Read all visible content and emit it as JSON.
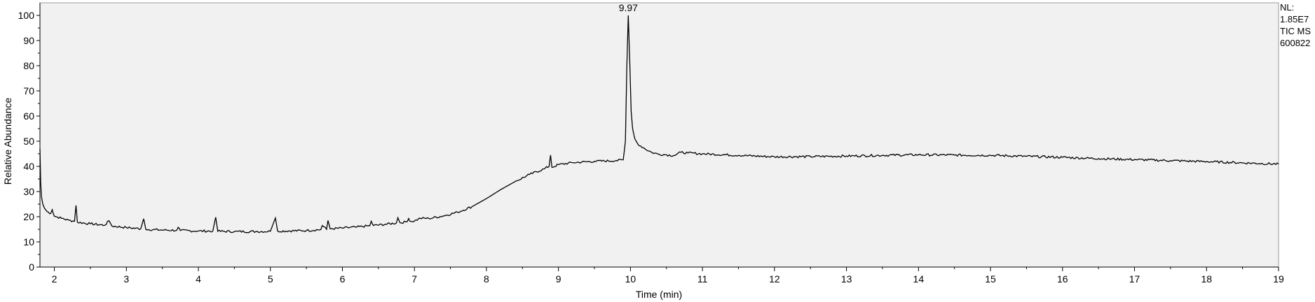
{
  "chart_data": {
    "type": "line",
    "xlabel": "Time (min)",
    "ylabel": "Relative Abundance",
    "xlim": [
      1.8,
      19.0
    ],
    "ylim": [
      0,
      100
    ],
    "x_ticks": [
      2,
      3,
      4,
      5,
      6,
      7,
      8,
      9,
      10,
      11,
      12,
      13,
      14,
      15,
      16,
      17,
      18,
      19
    ],
    "y_ticks": [
      0,
      10,
      20,
      30,
      40,
      50,
      60,
      70,
      80,
      90,
      100
    ],
    "peak_labels": [
      {
        "x": 9.97,
        "y": 100,
        "text": "9.97"
      }
    ],
    "info": [
      "NL:",
      "1.85E7",
      "TIC  MS",
      "600822"
    ],
    "series": [
      {
        "color": "#000000",
        "points": [
          [
            1.8,
            47
          ],
          [
            1.81,
            34
          ],
          [
            1.82,
            28
          ],
          [
            1.84,
            25
          ],
          [
            1.86,
            23.5
          ],
          [
            1.9,
            22
          ],
          [
            1.95,
            21.3
          ],
          [
            1.97,
            22.8
          ],
          [
            2.0,
            20.2
          ],
          [
            2.1,
            19.4
          ],
          [
            2.2,
            18.6
          ],
          [
            2.28,
            18.2
          ],
          [
            2.3,
            24.5
          ],
          [
            2.32,
            17.8
          ],
          [
            2.5,
            17.2
          ],
          [
            2.7,
            16.6
          ],
          [
            2.76,
            18.4
          ],
          [
            2.8,
            16.3
          ],
          [
            3.0,
            15.7
          ],
          [
            3.2,
            15.2
          ],
          [
            3.24,
            19.2
          ],
          [
            3.27,
            15.0
          ],
          [
            3.5,
            14.7
          ],
          [
            3.7,
            14.6
          ],
          [
            3.72,
            15.8
          ],
          [
            3.75,
            14.5
          ],
          [
            4.0,
            14.3
          ],
          [
            4.2,
            14.3
          ],
          [
            4.24,
            19.8
          ],
          [
            4.27,
            14.2
          ],
          [
            4.5,
            14.1
          ],
          [
            4.8,
            14.1
          ],
          [
            5.0,
            14.2
          ],
          [
            5.07,
            19.5
          ],
          [
            5.1,
            14.3
          ],
          [
            5.5,
            14.5
          ],
          [
            5.7,
            14.9
          ],
          [
            5.72,
            16.5
          ],
          [
            5.78,
            15.0
          ],
          [
            5.8,
            18.5
          ],
          [
            5.83,
            15.2
          ],
          [
            6.0,
            15.5
          ],
          [
            6.2,
            15.9
          ],
          [
            6.38,
            16.4
          ],
          [
            6.4,
            18.2
          ],
          [
            6.43,
            16.5
          ],
          [
            6.6,
            17.0
          ],
          [
            6.75,
            17.5
          ],
          [
            6.77,
            19.6
          ],
          [
            6.8,
            17.6
          ],
          [
            6.9,
            18.0
          ],
          [
            6.92,
            19.3
          ],
          [
            6.95,
            18.1
          ],
          [
            7.0,
            18.3
          ],
          [
            7.08,
            19.4
          ],
          [
            7.2,
            19.3
          ],
          [
            7.4,
            20.3
          ],
          [
            7.6,
            21.8
          ],
          [
            7.8,
            24.0
          ],
          [
            8.0,
            27.2
          ],
          [
            8.2,
            30.8
          ],
          [
            8.4,
            34.0
          ],
          [
            8.6,
            36.8
          ],
          [
            8.8,
            39.0
          ],
          [
            8.87,
            40.0
          ],
          [
            8.89,
            44.5
          ],
          [
            8.91,
            39.6
          ],
          [
            9.0,
            40.7
          ],
          [
            9.2,
            41.5
          ],
          [
            9.5,
            42.0
          ],
          [
            9.8,
            42.3
          ],
          [
            9.9,
            42.6
          ],
          [
            9.93,
            50
          ],
          [
            9.95,
            80
          ],
          [
            9.97,
            100
          ],
          [
            9.99,
            82
          ],
          [
            10.01,
            62
          ],
          [
            10.03,
            55
          ],
          [
            10.06,
            51
          ],
          [
            10.1,
            49
          ],
          [
            10.2,
            47
          ],
          [
            10.3,
            45.5
          ],
          [
            10.4,
            44.8
          ],
          [
            10.5,
            44.6
          ],
          [
            10.6,
            44.3
          ],
          [
            10.7,
            45.6
          ],
          [
            10.8,
            45.3
          ],
          [
            11.0,
            45.0
          ],
          [
            11.5,
            44.4
          ],
          [
            12.0,
            43.8
          ],
          [
            12.5,
            43.9
          ],
          [
            13.0,
            44.1
          ],
          [
            13.5,
            44.4
          ],
          [
            14.0,
            44.6
          ],
          [
            14.5,
            44.5
          ],
          [
            15.0,
            44.4
          ],
          [
            15.5,
            44.0
          ],
          [
            16.0,
            43.6
          ],
          [
            16.5,
            43.1
          ],
          [
            17.0,
            42.7
          ],
          [
            17.5,
            42.3
          ],
          [
            18.0,
            41.9
          ],
          [
            18.5,
            41.4
          ],
          [
            19.0,
            40.9
          ]
        ]
      }
    ]
  }
}
